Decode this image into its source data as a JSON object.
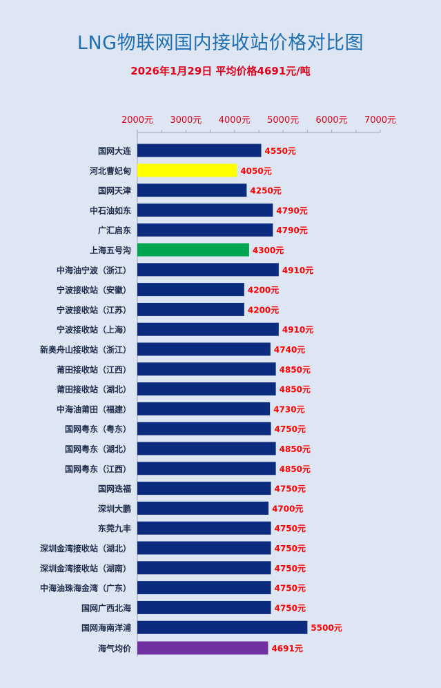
{
  "title": "LNG物联网国内接收站价格对比图",
  "subtitle": "2026年1月29日 平均价格4691元/吨",
  "chart_data": {
    "type": "bar",
    "orientation": "horizontal",
    "xlim": [
      2000,
      7000
    ],
    "x_ticks": [
      "2000元",
      "3000元",
      "4000元",
      "5000元",
      "6000元",
      "7000元"
    ],
    "x_tick_values": [
      2000,
      3000,
      4000,
      5000,
      6000,
      7000
    ],
    "value_suffix": "元",
    "colors": {
      "default": "#0b2c7e",
      "highlight_yellow": "#ffff00",
      "highlight_green": "#00a650",
      "average_purple": "#7030a0",
      "value_label": "#ff0000",
      "category_label": "#1f2d4d",
      "tick_label": "#e0001b"
    },
    "categories": [
      "国网大连",
      "河北曹妃甸",
      "国网天津",
      "中石油如东",
      "广汇启东",
      "上海五号沟",
      "中海油宁波（浙江）",
      "宁波接收站（安徽）",
      "宁波接收站（江苏）",
      "宁波接收站（上海）",
      "新奥舟山接收站（浙江）",
      "莆田接收站（江西）",
      "莆田接收站（湖北）",
      "中海油莆田（福建）",
      "国网粤东（粤东）",
      "国网粤东（湖北）",
      "国网粤东（江西）",
      "国网迭福",
      "深圳大鹏",
      "东莞九丰",
      "深圳金湾接收站（湖北）",
      "深圳金湾接收站（湖南）",
      "中海油珠海金湾（广东）",
      "国网广西北海",
      "国网海南洋浦",
      "海气均价"
    ],
    "values": [
      4550,
      4050,
      4250,
      4790,
      4790,
      4300,
      4910,
      4200,
      4200,
      4910,
      4740,
      4850,
      4850,
      4730,
      4750,
      4850,
      4850,
      4750,
      4700,
      4750,
      4750,
      4750,
      4750,
      4750,
      5500,
      4691
    ],
    "value_labels": [
      "4550元",
      "4050元",
      "4250元",
      "4790元",
      "4790元",
      "4300元",
      "4910元",
      "4200元",
      "4200元",
      "4910元",
      "4740元",
      "4850元",
      "4850元",
      "4730元",
      "4750元",
      "4850元",
      "4850元",
      "4750元",
      "4700元",
      "4750元",
      "4750元",
      "4750元",
      "4750元",
      "4750元",
      "5500元",
      "4691元"
    ],
    "bar_colors": [
      "default",
      "highlight_yellow",
      "default",
      "default",
      "default",
      "highlight_green",
      "default",
      "default",
      "default",
      "default",
      "default",
      "default",
      "default",
      "default",
      "default",
      "default",
      "default",
      "default",
      "default",
      "default",
      "default",
      "default",
      "default",
      "default",
      "default",
      "average_purple"
    ],
    "grid": false,
    "legend": "none"
  }
}
